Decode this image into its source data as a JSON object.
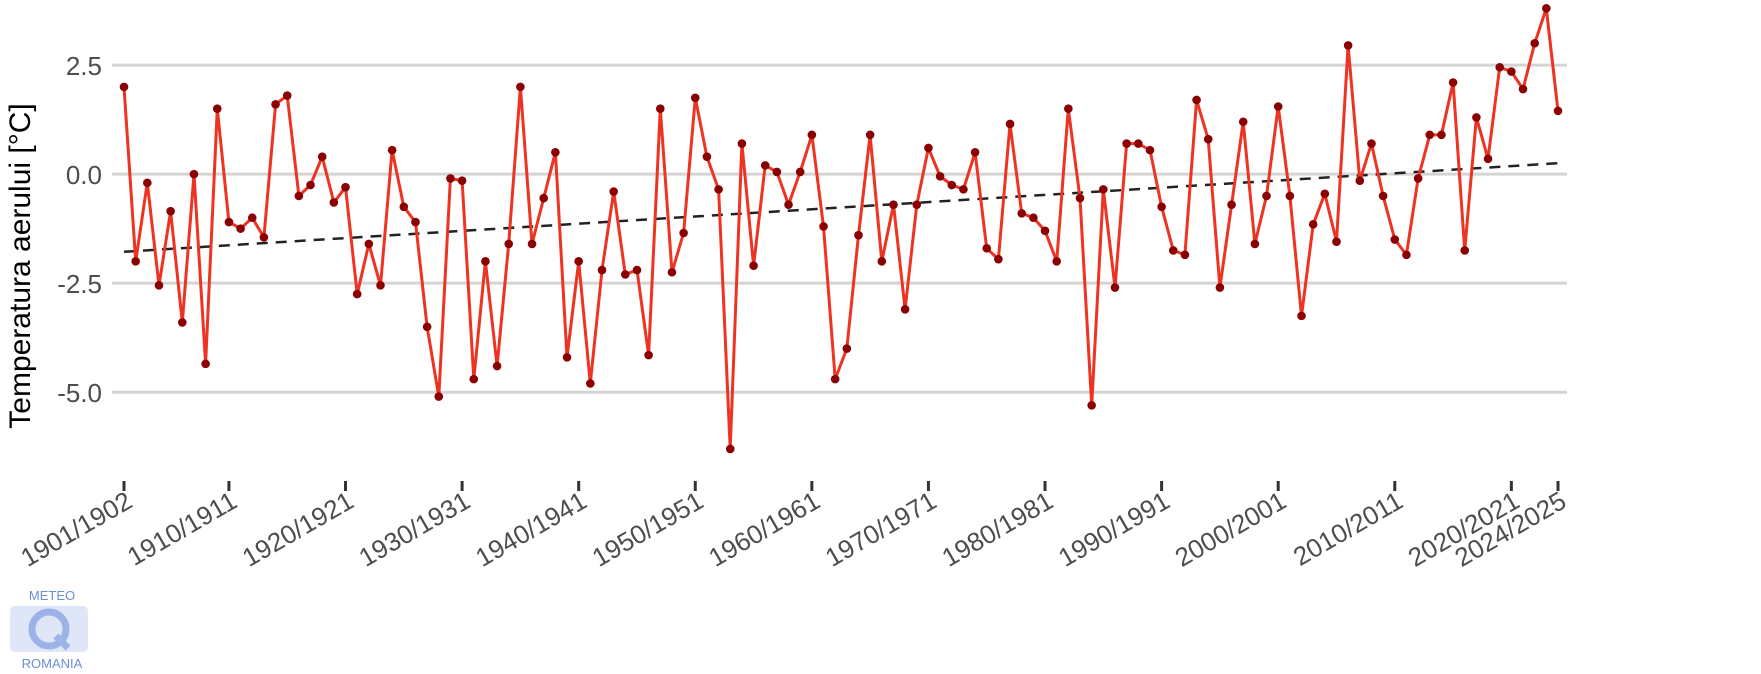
{
  "chart_data": {
    "type": "line",
    "title": "",
    "xlabel": "",
    "ylabel": "Temperatura aerului [°C]",
    "ylim": [
      -6.6,
      3.9
    ],
    "yticks": [
      -5.0,
      -2.5,
      0.0,
      2.5
    ],
    "ytick_labels": [
      "-5.0",
      "-2.5",
      "0.0",
      "2.5"
    ],
    "grid": "horizontal major lines",
    "legend": "none",
    "x_start_year": 1901,
    "xtick_labels": [
      "1901/1902",
      "1910/1911",
      "1920/1921",
      "1930/1931",
      "1940/1941",
      "1950/1951",
      "1960/1961",
      "1970/1971",
      "1980/1981",
      "1990/1991",
      "2000/2001",
      "2010/2011",
      "2020/2021",
      "2024/2025"
    ],
    "series": [
      {
        "color": "#ee3322",
        "marker_color": "#8b0000",
        "values": [
          2.0,
          -2.0,
          -0.2,
          -2.55,
          -0.85,
          -3.4,
          0.0,
          -4.35,
          1.5,
          -1.1,
          -1.25,
          -1.0,
          -1.45,
          1.6,
          1.8,
          -0.5,
          -0.25,
          0.4,
          -0.65,
          -0.3,
          -2.75,
          -1.6,
          -2.55,
          0.55,
          -0.75,
          -1.1,
          -3.5,
          -5.1,
          -0.1,
          -0.15,
          -4.7,
          -2.0,
          -4.4,
          -1.6,
          2.0,
          -1.6,
          -0.55,
          0.5,
          -4.2,
          -2.0,
          -4.8,
          -2.2,
          -0.4,
          -2.3,
          -2.2,
          -4.15,
          1.5,
          -2.25,
          -1.35,
          1.75,
          0.4,
          -0.35,
          -6.3,
          0.7,
          -2.1,
          0.2,
          0.05,
          -0.7,
          0.05,
          0.9,
          -1.2,
          -4.7,
          -4.0,
          -1.4,
          0.9,
          -2.0,
          -0.7,
          -3.1,
          -0.7,
          0.6,
          -0.05,
          -0.25,
          -0.35,
          0.5,
          -1.7,
          -1.95,
          1.15,
          -0.9,
          -1.0,
          -1.3,
          -2.0,
          1.5,
          -0.55,
          -5.3,
          -0.35,
          -2.6,
          0.7,
          0.7,
          0.55,
          -0.75,
          -1.75,
          -1.85,
          1.7,
          0.8,
          -2.6,
          -0.7,
          1.2,
          -1.6,
          -0.5,
          1.55,
          -0.5,
          -3.25,
          -1.15,
          -0.45,
          -1.55,
          2.95,
          -0.15,
          0.7,
          -0.5,
          -1.5,
          -1.85,
          -0.1,
          0.9,
          0.9,
          2.1,
          -1.75,
          1.3,
          0.35,
          2.45,
          2.35,
          1.95,
          3.0,
          3.8,
          1.45
        ]
      }
    ],
    "trend": {
      "style": "dashed",
      "color": "#222222",
      "start_value": -1.78,
      "end_value": 0.25
    }
  },
  "logo": {
    "top_text": "METEO",
    "bottom_text": "ROMANIA"
  }
}
